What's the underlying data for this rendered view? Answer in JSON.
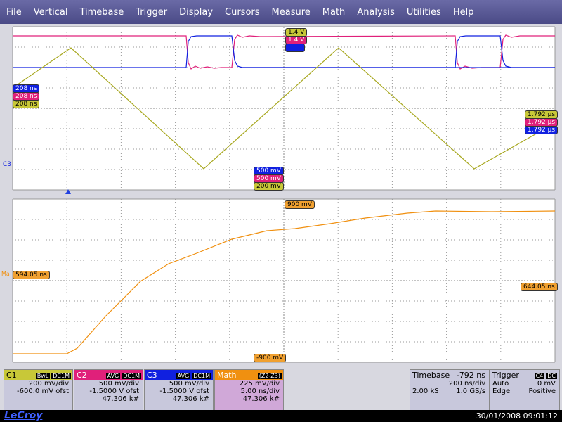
{
  "menu": [
    "File",
    "Vertical",
    "Timebase",
    "Trigger",
    "Display",
    "Cursors",
    "Measure",
    "Math",
    "Analysis",
    "Utilities",
    "Help"
  ],
  "upper": {
    "trigger_levels": [
      "1.4 V",
      "1.4 V"
    ],
    "left": [
      "208 ns",
      "208 ns",
      "208 ns"
    ],
    "right": [
      "1.792 µs",
      "1.792 µs",
      "1.792 µs"
    ],
    "bottom": [
      "500 mV",
      "500 mV",
      "200 mV"
    ],
    "channel": "C3"
  },
  "lower": {
    "top": "900 mV",
    "bottom": "-900 mV",
    "left": "594.05 ns",
    "right": "644.05 ns",
    "channel": "Ma"
  },
  "panels": [
    {
      "title": "C1",
      "tags": [
        "BwL",
        "DC1M"
      ],
      "lines": [
        "200 mV/div",
        "-600.0 mV ofst"
      ]
    },
    {
      "title": "C2",
      "tags": [
        "AVG",
        "DC1M"
      ],
      "lines": [
        "500 mV/div",
        "-1.5000 V ofst",
        "47.306 k#"
      ]
    },
    {
      "title": "C3",
      "tags": [
        "AVG",
        "DC1M"
      ],
      "lines": [
        "500 mV/div",
        "-1.5000 V ofst",
        "47.306 k#"
      ]
    },
    {
      "title": "Math",
      "tags": [
        "(Z2-Z3)"
      ],
      "lines": [
        "225 mV/div",
        "5.00 ns/div",
        "47.306 k#"
      ]
    }
  ],
  "timebase": {
    "title": "Timebase",
    "delay": "-792 ns",
    "div": "200 ns/div",
    "samples": "2.00 kS",
    "rate": "1.0 GS/s"
  },
  "trigger": {
    "title": "Trigger",
    "source": "C4",
    "coupling": "DC",
    "mode": "Auto",
    "level": "0 mV",
    "type": "Edge",
    "slope": "Positive"
  },
  "footer": {
    "brand": "LeCroy",
    "datetime": "30/01/2008 09:01:12"
  }
}
